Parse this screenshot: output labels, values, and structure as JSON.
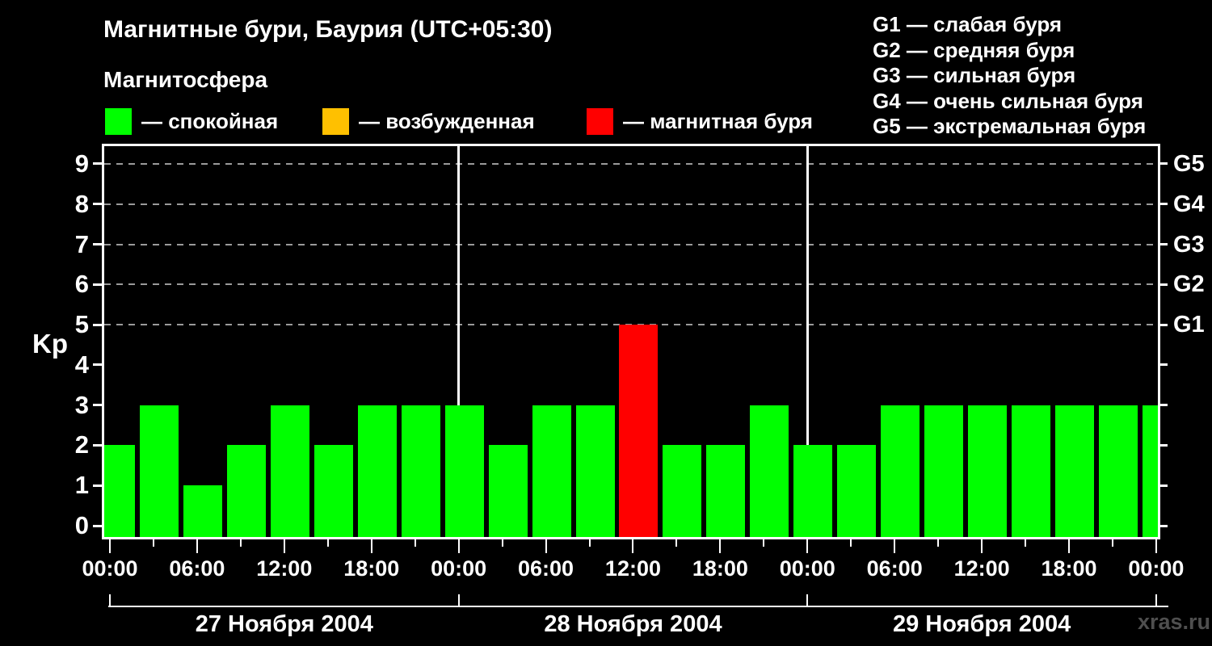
{
  "header": {
    "title": "Магнитные бури, Баурия (UTC+05:30)",
    "subtitle": "Магнитосфера"
  },
  "legend": {
    "items": [
      {
        "name": "quiet",
        "color": "#00ff00",
        "label": "— спокойная"
      },
      {
        "name": "excited",
        "color": "#ffc000",
        "label": "— возбужденная"
      },
      {
        "name": "storm",
        "color": "#ff0000",
        "label": "— магнитная буря"
      }
    ]
  },
  "storm_scale_legend": {
    "items": [
      "G1 — слабая буря",
      "G2 — средняя буря",
      "G3 — сильная буря",
      "G4 — очень сильная буря",
      "G5 — экстремальная буря"
    ]
  },
  "watermark": "xras.ru",
  "chart_data": {
    "type": "bar",
    "title": "Магнитные бури, Баурия (UTC+05:30)",
    "ylabel": "Kp",
    "ylim": [
      0,
      9
    ],
    "y_ticks": [
      0,
      1,
      2,
      3,
      4,
      5,
      6,
      7,
      8,
      9
    ],
    "gridline_levels": [
      5,
      6,
      7,
      8,
      9
    ],
    "right_axis_labels": [
      {
        "level": 5,
        "label": "G1"
      },
      {
        "level": 6,
        "label": "G2"
      },
      {
        "level": 7,
        "label": "G3"
      },
      {
        "level": 8,
        "label": "G4"
      },
      {
        "level": 9,
        "label": "G5"
      }
    ],
    "interval_hours": 3,
    "x_tick_labels_6h": [
      "00:00",
      "06:00",
      "12:00",
      "18:00",
      "00:00",
      "06:00",
      "12:00",
      "18:00",
      "00:00",
      "06:00",
      "12:00",
      "18:00",
      "00:00"
    ],
    "days": [
      {
        "date_label": "27 Ноября 2004",
        "kp": [
          2,
          3,
          1,
          2,
          3,
          2,
          3,
          3
        ]
      },
      {
        "date_label": "28 Ноября 2004",
        "kp": [
          3,
          2,
          3,
          3,
          5,
          2,
          2,
          3
        ]
      },
      {
        "date_label": "29 Ноября 2004",
        "kp": [
          2,
          2,
          3,
          3,
          3,
          3,
          3,
          3
        ]
      }
    ],
    "next_day_first_kp": 3,
    "status_colors": {
      "quiet": "#00ff00",
      "excited": "#ffc000",
      "storm": "#ff0000"
    },
    "excited_kp": 4,
    "storm_min_kp": 5,
    "legend_position": "top-left",
    "grid": "dashed horizontal at Kp 5-9 only"
  }
}
